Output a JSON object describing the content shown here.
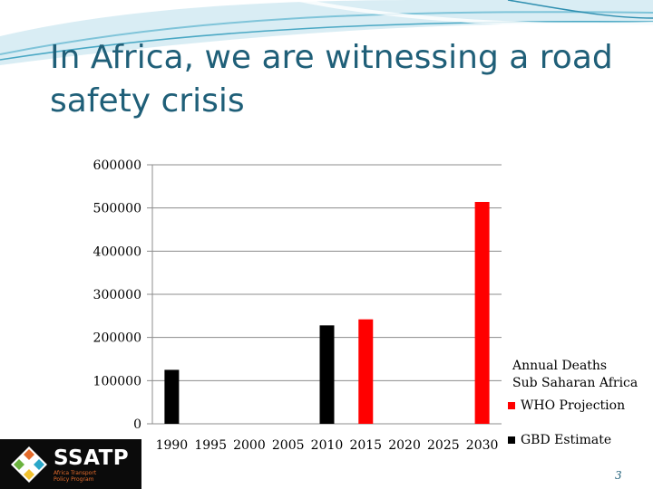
{
  "slide": {
    "title": "In Africa, we are witnessing a road safety crisis",
    "page_number": "3"
  },
  "logo": {
    "name": "SSATP",
    "tagline_line1": "Africa Transport",
    "tagline_line2": "Policy Program"
  },
  "colors": {
    "title": "#1f5f78",
    "gbd": "#000000",
    "who": "#ff0000",
    "grid": "#8c8c8c"
  },
  "chart_data": {
    "type": "bar",
    "title": "Annual Deaths Sub Saharan Africa",
    "title_line1": "Annual Deaths",
    "title_line2": "Sub Saharan Africa",
    "categories": [
      "1990",
      "1995",
      "2000",
      "2005",
      "2010",
      "2015",
      "2020",
      "2025",
      "2030"
    ],
    "series": [
      {
        "name": "GBD Estimate",
        "color": "#000000",
        "values": [
          125000,
          null,
          null,
          null,
          228000,
          null,
          null,
          null,
          null
        ]
      },
      {
        "name": "WHO Projection",
        "color": "#ff0000",
        "values": [
          null,
          null,
          null,
          null,
          null,
          242000,
          null,
          null,
          514000
        ]
      }
    ],
    "yticks": [
      "0",
      "100000",
      "200000",
      "300000",
      "400000",
      "500000",
      "600000"
    ],
    "ylim": [
      0,
      600000
    ],
    "legend": "right",
    "grid": true
  }
}
